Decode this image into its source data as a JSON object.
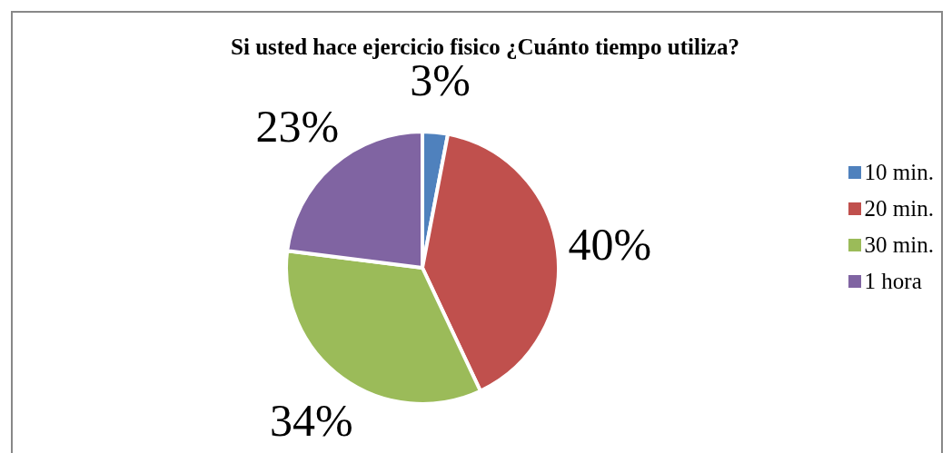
{
  "chart_data": {
    "type": "pie",
    "title": "Si usted hace ejercicio fisico ¿Cuánto tiempo utiliza?",
    "categories": [
      "10 min.",
      "20 min.",
      "30 min.",
      "1 hora"
    ],
    "values": [
      3,
      40,
      34,
      23
    ],
    "colors": [
      "#4f81bd",
      "#c0504d",
      "#9bbb59",
      "#8064a2"
    ],
    "value_labels": [
      "3%",
      "40%",
      "34%",
      "23%"
    ],
    "legend": "right"
  }
}
